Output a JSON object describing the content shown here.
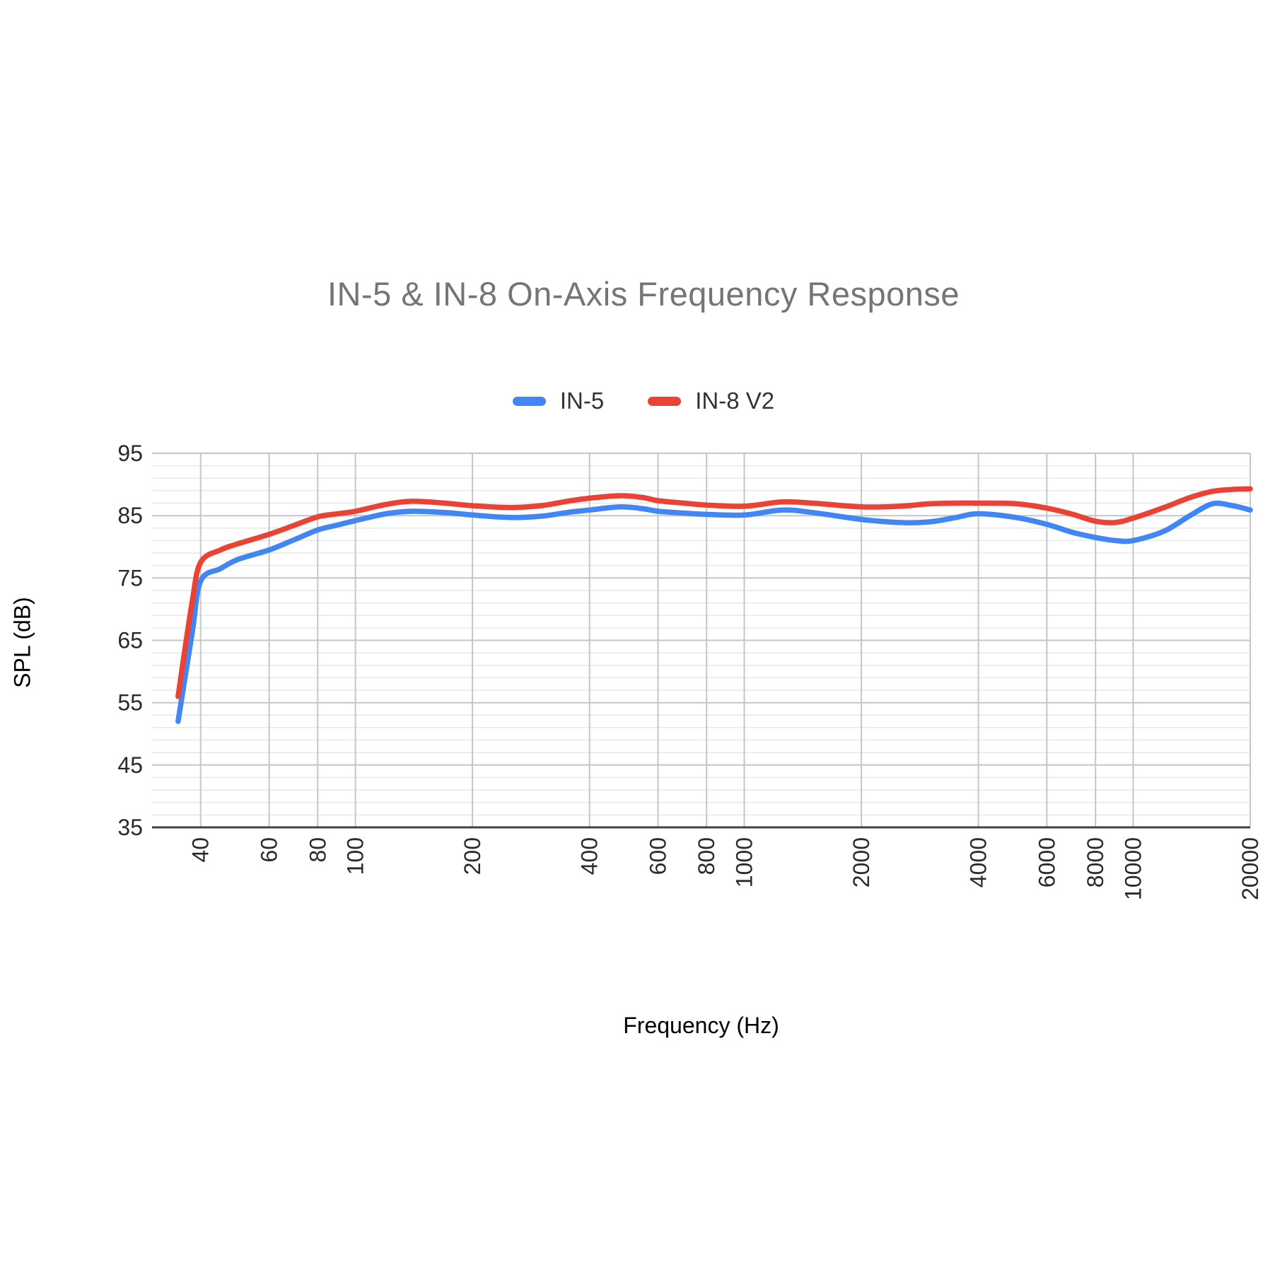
{
  "chart": {
    "title": "IN-5 & IN-8 On-Axis Frequency Response",
    "x_axis_title": "Frequency (Hz)",
    "y_axis_title": "SPL (dB)",
    "legend": [
      {
        "label": "IN-5",
        "color": "#4285F4"
      },
      {
        "label": "IN-8 V2",
        "color": "#EA4335"
      }
    ],
    "colors": {
      "title_text": "#757575",
      "tick_label": "#2a2a2a",
      "axis_line": "#424242",
      "major_grid": "#c6c6c6",
      "minor_grid": "#e7e7e7",
      "series_blue": "#4285F4",
      "series_red": "#EA4335"
    }
  },
  "chart_data": {
    "type": "line",
    "title": "IN-5 & IN-8 On-Axis Frequency Response",
    "xlabel": "Frequency (Hz)",
    "ylabel": "SPL (dB)",
    "x_scale": "log",
    "grid": true,
    "legend_position": "top",
    "x_range": [
      30,
      20000
    ],
    "y_range": [
      35,
      95
    ],
    "x_ticks": [
      40,
      60,
      80,
      100,
      200,
      400,
      600,
      800,
      1000,
      2000,
      4000,
      6000,
      8000,
      10000,
      20000
    ],
    "y_ticks": [
      95,
      85,
      75,
      65,
      55,
      45,
      35
    ],
    "minor_y_step": 2,
    "x": [
      35,
      38,
      40,
      45,
      50,
      60,
      70,
      80,
      90,
      100,
      120,
      140,
      170,
      200,
      250,
      300,
      350,
      400,
      480,
      550,
      600,
      700,
      800,
      1000,
      1250,
      1500,
      2000,
      2500,
      3000,
      3500,
      4000,
      5000,
      6000,
      7000,
      8000,
      9000,
      10000,
      12000,
      14000,
      16000,
      18000,
      20000
    ],
    "series": [
      {
        "name": "IN-5",
        "color": "#4285F4",
        "values": [
          52.0,
          66.0,
          74.5,
          76.5,
          78.0,
          79.5,
          81.2,
          82.7,
          83.5,
          84.2,
          85.3,
          85.7,
          85.5,
          85.1,
          84.7,
          84.9,
          85.5,
          85.9,
          86.4,
          86.1,
          85.7,
          85.4,
          85.2,
          85.1,
          85.9,
          85.5,
          84.4,
          83.9,
          84.0,
          84.7,
          85.3,
          84.7,
          83.6,
          82.3,
          81.5,
          81.0,
          81.0,
          82.5,
          85.0,
          86.9,
          86.6,
          85.9
        ]
      },
      {
        "name": "IN-8 V2",
        "color": "#EA4335",
        "values": [
          56.0,
          71.0,
          77.5,
          79.5,
          80.5,
          82.0,
          83.5,
          84.8,
          85.3,
          85.7,
          86.8,
          87.3,
          87.0,
          86.6,
          86.3,
          86.6,
          87.3,
          87.8,
          88.2,
          87.9,
          87.4,
          87.0,
          86.7,
          86.5,
          87.2,
          87.0,
          86.4,
          86.5,
          86.9,
          87.0,
          87.0,
          86.9,
          86.2,
          85.2,
          84.1,
          83.9,
          84.6,
          86.3,
          87.9,
          88.9,
          89.2,
          89.3
        ]
      }
    ]
  }
}
